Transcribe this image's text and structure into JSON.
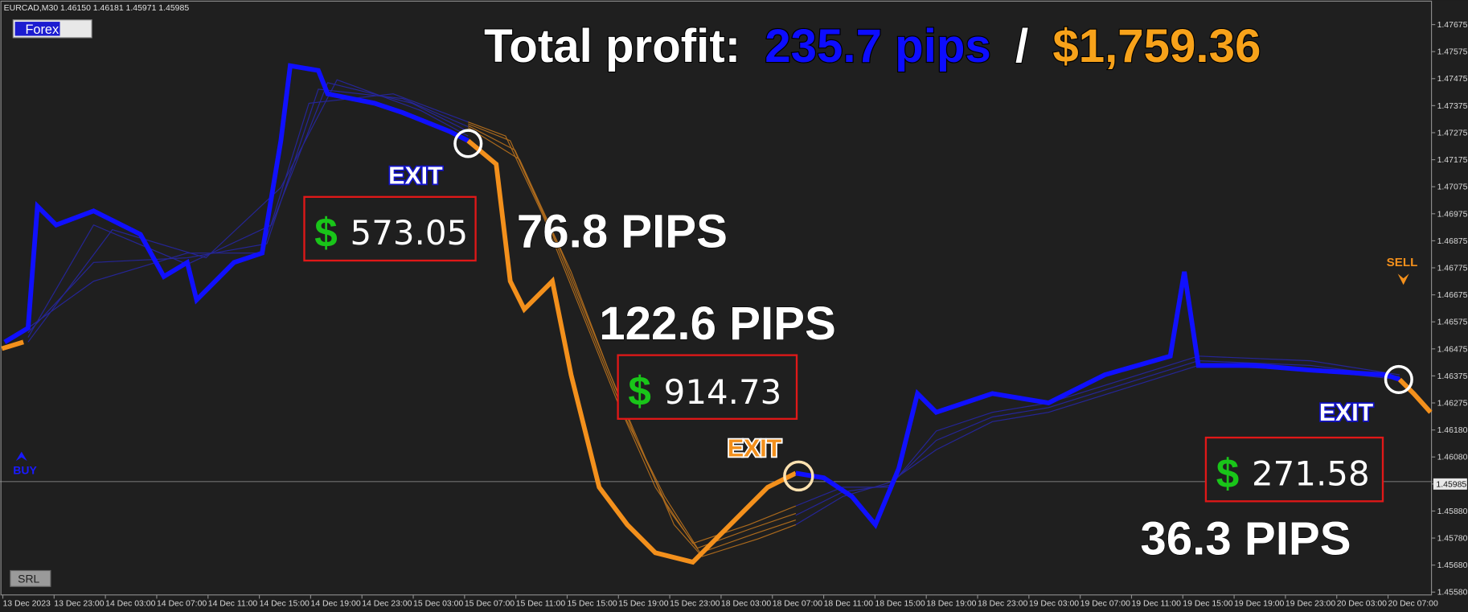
{
  "header": {
    "symbol_info": "EURCAD,M30  1.46150 1.46181 1.45971 1.45985",
    "tab": "Forex"
  },
  "headline": {
    "label": "Total profit:",
    "pips": "235.7 pips",
    "separator": "/",
    "amount": "$1,759.36"
  },
  "price_axis": {
    "labels": [
      "1.47675",
      "1.47575",
      "1.47475",
      "1.47375",
      "1.47275",
      "1.47175",
      "1.47075",
      "1.46975",
      "1.46875",
      "1.46775",
      "1.46675",
      "1.46575",
      "1.46475",
      "1.46375",
      "1.46275",
      "1.46180",
      "1.46080",
      "1.45985",
      "1.45880",
      "1.45780",
      "1.45680",
      "1.45580"
    ]
  },
  "time_axis": {
    "labels": [
      "13 Dec 2023",
      "13 Dec 23:00",
      "14 Dec 03:00",
      "14 Dec 07:00",
      "14 Dec 11:00",
      "14 Dec 15:00",
      "14 Dec 19:00",
      "14 Dec 23:00",
      "15 Dec 03:00",
      "15 Dec 07:00",
      "15 Dec 11:00",
      "15 Dec 15:00",
      "15 Dec 19:00",
      "15 Dec 23:00",
      "18 Dec 03:00",
      "18 Dec 07:00",
      "18 Dec 11:00",
      "18 Dec 15:00",
      "18 Dec 19:00",
      "18 Dec 23:00",
      "19 Dec 03:00",
      "19 Dec 07:00",
      "19 Dec 11:00",
      "19 Dec 15:00",
      "19 Dec 19:00",
      "19 Dec 23:00",
      "20 Dec 03:00",
      "20 Dec 07:00"
    ]
  },
  "trades": [
    {
      "exit": "EXIT",
      "pips": "76.8 PIPS",
      "currency": "$",
      "profit": "573.05"
    },
    {
      "exit": "EXIT",
      "pips": "122.6 PIPS",
      "currency": "$",
      "profit": "914.73"
    },
    {
      "exit": "EXIT",
      "pips": "36.3 PIPS",
      "currency": "$",
      "profit": "271.58"
    }
  ],
  "signals": {
    "sell": "SELL",
    "buy": "BUY"
  },
  "footer": {
    "button": "SRL"
  }
}
